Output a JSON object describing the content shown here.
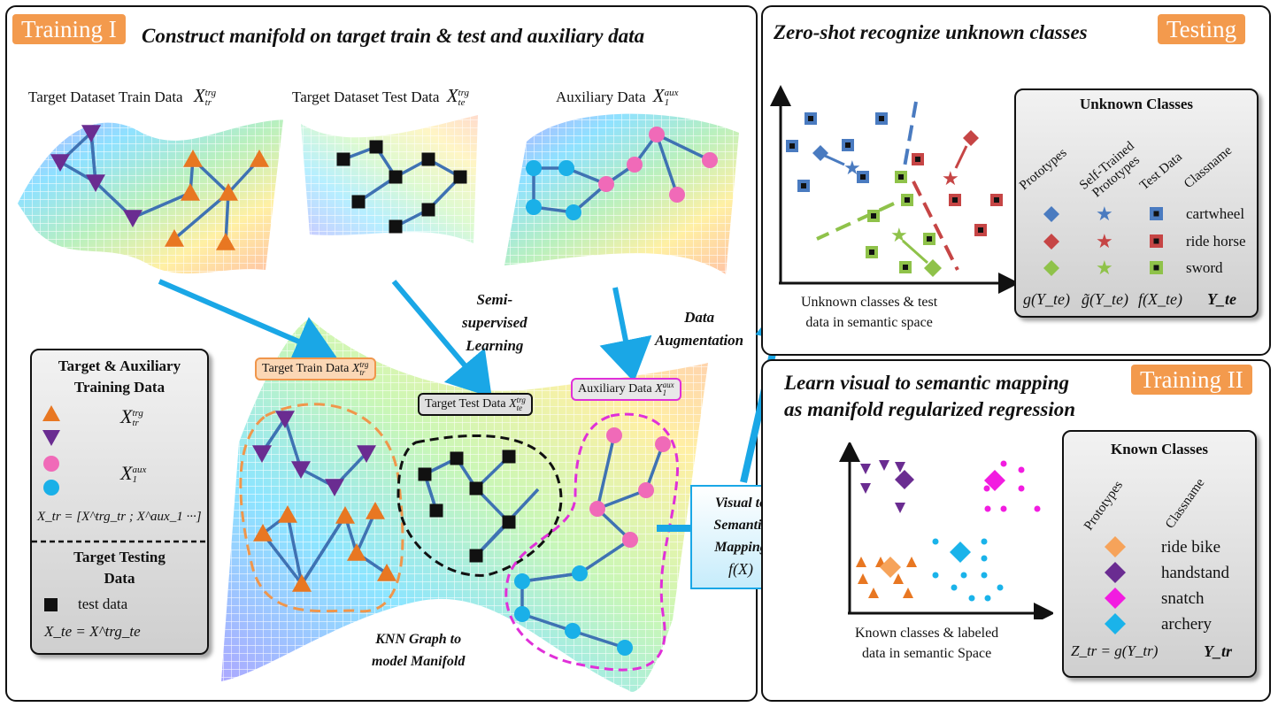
{
  "training1": {
    "tag": "Training I",
    "title": "Construct manifold on target train & test and auxiliary data",
    "sources": {
      "train": {
        "label": "Target Dataset Train Data",
        "symbol": "X",
        "sup": "trg",
        "sub": "tr"
      },
      "test": {
        "label": "Target Dataset Test Data",
        "symbol": "X",
        "sup": "trg",
        "sub": "te"
      },
      "aux": {
        "label": "Auxiliary Data",
        "symbol": "X",
        "sup": "aux",
        "sub": "1"
      }
    },
    "ssl_label_lines": [
      "Semi-",
      "supervised",
      "Learning"
    ],
    "aug_label_lines": [
      "Data",
      "Augmentation"
    ],
    "knn_label_lines": [
      "KNN Graph to",
      "model Manifold"
    ],
    "callouts": {
      "train": {
        "text": "Target Train Data",
        "symbol": "X",
        "sup": "trg",
        "sub": "tr"
      },
      "test": {
        "text": "Target Test Data",
        "symbol": "X",
        "sup": "trg",
        "sub": "te"
      },
      "aux": {
        "text": "Auxiliary Data",
        "symbol": "X",
        "sup": "aux",
        "sub": "1"
      }
    },
    "legend": {
      "title_lines": [
        "Target & Auxiliary",
        "Training Data"
      ],
      "symbol_trg": {
        "symbol": "X",
        "sup": "trg",
        "sub": "tr"
      },
      "symbol_aux": {
        "symbol": "X",
        "sup": "aux",
        "sub": "1"
      },
      "formula": "X_tr = [X^trg_tr ; X^aux_1 ···]",
      "test_title_lines": [
        "Target Testing",
        "Data"
      ],
      "test_item": "test data",
      "test_formula": "X_te = X^trg_te"
    }
  },
  "mapping": {
    "lines": [
      "Visual to",
      "Semantic",
      "Mapping",
      "f(X)"
    ]
  },
  "testing": {
    "tag": "Testing",
    "title": "Zero-shot recognize unknown classes",
    "axis_caption_lines": [
      "Unknown classes & test",
      "data in semantic space"
    ],
    "legend": {
      "title": "Unknown Classes",
      "col_headers": [
        "Prototypes",
        "Self-Trained Prototypes",
        "Test Data",
        "Classname"
      ],
      "classes": [
        "cartwheel",
        "ride horse",
        "sword"
      ],
      "footer": [
        "g(Y_te)",
        "g̃(Y_te)",
        "f(X_te)",
        "Y_te"
      ]
    }
  },
  "training2": {
    "tag": "Training II",
    "title_lines": [
      "Learn visual to semantic mapping",
      "as manifold regularized regression"
    ],
    "axis_caption_lines": [
      "Known classes & labeled",
      "data in semantic Space"
    ],
    "legend": {
      "title": "Known Classes",
      "col_headers": [
        "Prototypes",
        "Classname"
      ],
      "classes": [
        "ride bike",
        "handstand",
        "snatch",
        "archery"
      ],
      "footer": [
        "Z_tr = g(Y_tr)",
        "Y_tr"
      ]
    }
  },
  "colors": {
    "orange": "#e87722",
    "purple": "#6a2c91",
    "pink": "#f06ab8",
    "cyan": "#1ab0e8",
    "arrow": "#1aa7e6",
    "edge": "#3f72b3",
    "tag": "#f39a4d",
    "blue_class": "#4a7bc0",
    "red_class": "#c64545",
    "green_class": "#8fc24a",
    "magenta": "#f21ce0",
    "lightblue": "#1ab3ea"
  }
}
